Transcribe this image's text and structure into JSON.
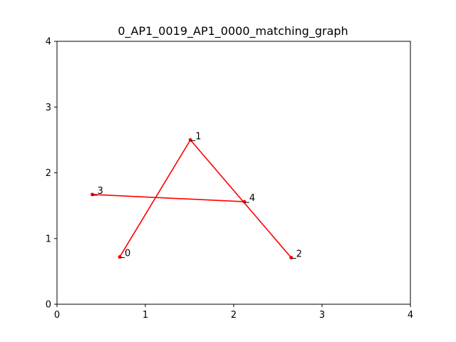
{
  "chart_data": {
    "type": "line",
    "title": "0_AP1_0019_AP1_0000_matching_graph",
    "xlabel": "",
    "ylabel": "",
    "xlim": [
      0,
      4
    ],
    "ylim": [
      0,
      4
    ],
    "x_ticks": [
      "0",
      "1",
      "2",
      "3",
      "4"
    ],
    "y_ticks": [
      "0",
      "1",
      "2",
      "3",
      "4"
    ],
    "grid": false,
    "legend": "none",
    "color": "#ff0000",
    "nodes": [
      {
        "label": "0",
        "x": 0.71,
        "y": 0.72
      },
      {
        "label": "1",
        "x": 1.51,
        "y": 2.5
      },
      {
        "label": "2",
        "x": 2.65,
        "y": 0.71
      },
      {
        "label": "3",
        "x": 0.4,
        "y": 1.67
      },
      {
        "label": "4",
        "x": 2.12,
        "y": 1.56
      }
    ],
    "edges": [
      {
        "from": "0",
        "to": "1"
      },
      {
        "from": "1",
        "to": "2"
      },
      {
        "from": "3",
        "to": "4"
      }
    ]
  }
}
